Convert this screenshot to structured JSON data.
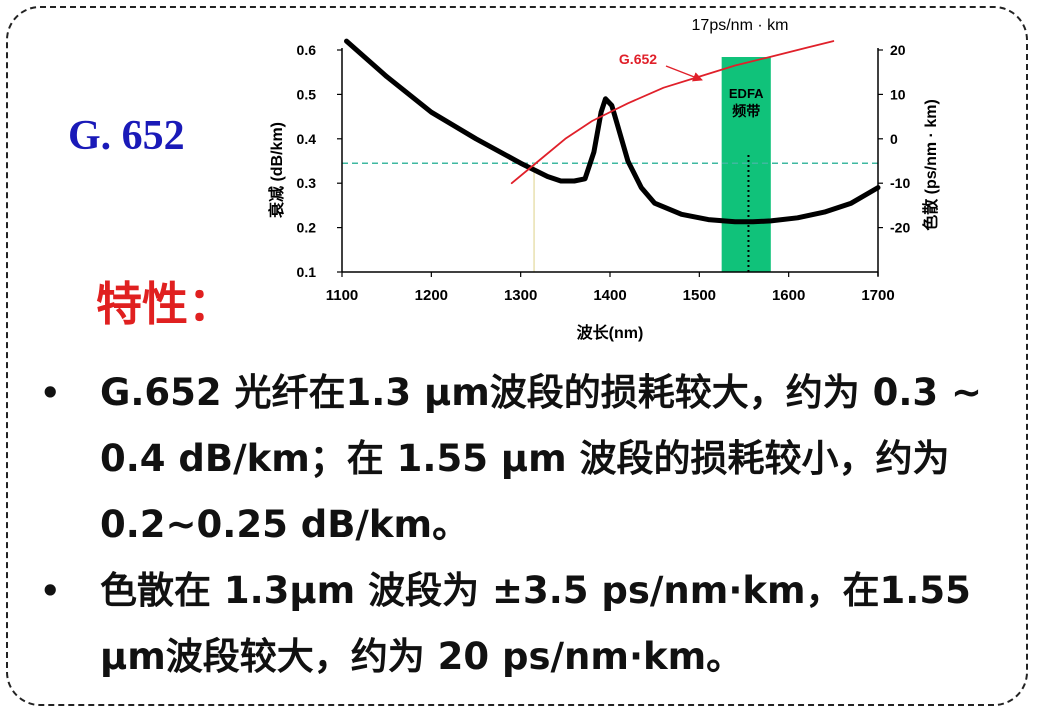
{
  "slide": {
    "title": "G. 652",
    "subhead": "特性：",
    "bullets": [
      {
        "dot": "•",
        "text": "G.652 光纤在1.3 μm波段的损耗较大，约为 0.3 ~ 0.4 dB/km；在 1.55 μm 波段的损耗较小，约为 0.2~0.25 dB/km。"
      },
      {
        "dot": "•",
        "text": "色散在 1.3μm 波段为 ±3.5 ps/nm·km，在1.55 μm波段较大，约为 20 ps/nm·km。"
      }
    ]
  },
  "chart_data": {
    "type": "line",
    "xlabel": "波长(nm)",
    "ylabel_left": "衰减 (dB/km)",
    "ylabel_right": "色散 (ps/nm · km)",
    "xlim": [
      1100,
      1700
    ],
    "ylim_left": [
      0.1,
      0.6
    ],
    "ylim_right": [
      -30,
      20
    ],
    "x_ticks": [
      "1100",
      "1200",
      "1300",
      "1400",
      "1500",
      "1600",
      "1700"
    ],
    "y_ticks_left": [
      "0.1",
      "0.2",
      "0.3",
      "0.4",
      "0.5",
      "0.6"
    ],
    "y_ticks_right": [
      "-20",
      "-10",
      "0",
      "10",
      "20"
    ],
    "series": [
      {
        "name": "",
        "axis": "left",
        "color": "#000000",
        "x": [
          1105,
          1150,
          1200,
          1250,
          1300,
          1330,
          1345,
          1360,
          1372,
          1382,
          1390,
          1395,
          1402,
          1410,
          1420,
          1435,
          1450,
          1480,
          1510,
          1540,
          1560,
          1580,
          1610,
          1640,
          1670,
          1700
        ],
        "y": [
          0.62,
          0.54,
          0.46,
          0.4,
          0.345,
          0.315,
          0.305,
          0.305,
          0.31,
          0.37,
          0.46,
          0.49,
          0.475,
          0.42,
          0.35,
          0.29,
          0.255,
          0.23,
          0.218,
          0.213,
          0.213,
          0.215,
          0.222,
          0.235,
          0.255,
          0.29
        ]
      },
      {
        "name": "G.652",
        "axis": "right",
        "color": "#e0202a",
        "x": [
          1290,
          1320,
          1350,
          1380,
          1420,
          1460,
          1500,
          1540,
          1580,
          1620,
          1650
        ],
        "y": [
          -10,
          -5,
          0,
          4,
          8,
          11.5,
          14,
          16.5,
          18.5,
          20.5,
          22
        ]
      }
    ],
    "annotations": {
      "dispersion_label": "17ps/nm · km",
      "g652_label": "G.652",
      "edfa_band_label_1": "EDFA",
      "edfa_band_label_2": "频带",
      "edfa_band": [
        1525,
        1580
      ],
      "edfa_color": "#10c27a",
      "cyan_dashed_level": 0.345,
      "cyan_color": "#3fb8a0",
      "marker_1550_x": 1555,
      "marker_1310_x": 1315
    }
  }
}
